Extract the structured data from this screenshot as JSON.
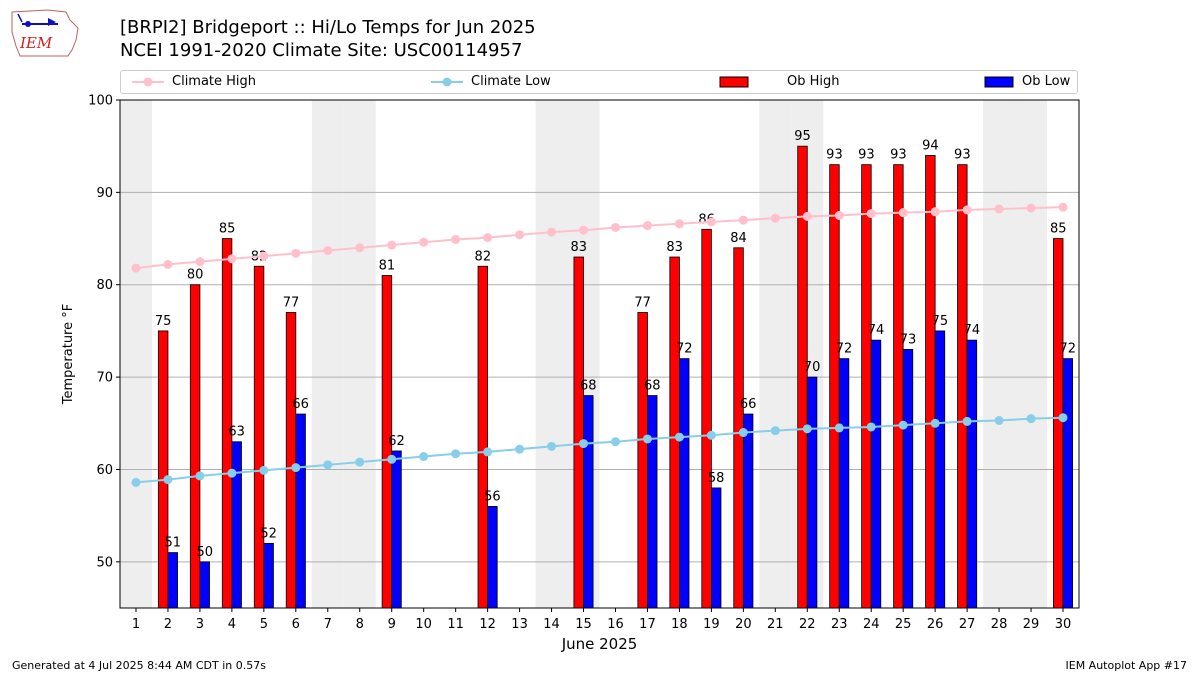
{
  "header": {
    "title_line1": "[BRPI2] Bridgeport :: Hi/Lo Temps for Jun 2025",
    "title_line2": "NCEI 1991-2020 Climate Site: USC00114957",
    "logo_text": "IEM"
  },
  "legend": {
    "climate_high": "Climate High",
    "climate_low": "Climate Low",
    "ob_high": "Ob High",
    "ob_low": "Ob Low"
  },
  "footer": {
    "generated": "Generated at 4 Jul 2025 8:44 AM CDT in 0.57s",
    "app": "IEM Autoplot App #17"
  },
  "colors": {
    "ob_high": "#ff0000",
    "ob_low": "#0000ff",
    "climate_high": "#ffc0cb",
    "climate_low": "#87ceeb",
    "weekend_shade": "#eeeeee",
    "grid": "#b0b0b0"
  },
  "chart_data": {
    "type": "bar",
    "xlabel": "June 2025",
    "ylabel": "Temperature °F",
    "ylim": [
      45,
      100
    ],
    "yticks": [
      50,
      60,
      70,
      80,
      90,
      100
    ],
    "grid": "horizontal",
    "legend_position": "top",
    "x": [
      1,
      2,
      3,
      4,
      5,
      6,
      7,
      8,
      9,
      10,
      11,
      12,
      13,
      14,
      15,
      16,
      17,
      18,
      19,
      20,
      21,
      22,
      23,
      24,
      25,
      26,
      27,
      28,
      29,
      30
    ],
    "weekend_days": [
      1,
      7,
      8,
      14,
      15,
      21,
      22,
      28,
      29
    ],
    "series": [
      {
        "name": "Ob High",
        "kind": "bar",
        "values": [
          null,
          75,
          80,
          85,
          82,
          77,
          null,
          null,
          81,
          null,
          null,
          82,
          null,
          null,
          83,
          null,
          77,
          83,
          86,
          84,
          null,
          95,
          93,
          93,
          93,
          94,
          93,
          null,
          null,
          85
        ]
      },
      {
        "name": "Ob Low",
        "kind": "bar",
        "values": [
          null,
          51,
          50,
          63,
          52,
          66,
          null,
          null,
          62,
          null,
          null,
          56,
          null,
          null,
          68,
          null,
          68,
          72,
          58,
          66,
          null,
          70,
          72,
          74,
          73,
          75,
          74,
          null,
          null,
          72
        ]
      },
      {
        "name": "Climate High",
        "kind": "line",
        "values": [
          81.8,
          82.2,
          82.5,
          82.8,
          83.1,
          83.4,
          83.7,
          84.0,
          84.3,
          84.6,
          84.9,
          85.1,
          85.4,
          85.7,
          85.9,
          86.2,
          86.4,
          86.6,
          86.8,
          87.0,
          87.2,
          87.4,
          87.5,
          87.7,
          87.8,
          87.9,
          88.1,
          88.2,
          88.3,
          88.4
        ]
      },
      {
        "name": "Climate Low",
        "kind": "line",
        "values": [
          58.6,
          58.9,
          59.3,
          59.6,
          59.9,
          60.2,
          60.5,
          60.8,
          61.1,
          61.4,
          61.7,
          61.9,
          62.2,
          62.5,
          62.8,
          63.0,
          63.3,
          63.5,
          63.7,
          64.0,
          64.2,
          64.4,
          64.5,
          64.6,
          64.8,
          65.0,
          65.2,
          65.3,
          65.5,
          65.6
        ]
      }
    ]
  }
}
